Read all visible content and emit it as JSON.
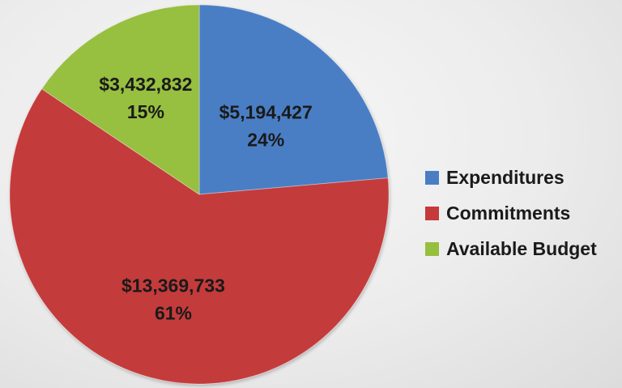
{
  "chart_data": {
    "type": "pie",
    "title": "",
    "slices": [
      {
        "name": "Expenditures",
        "value": 5194427,
        "value_label": "$5,194,427",
        "percent_label": "24%",
        "color": "#4a7ec4"
      },
      {
        "name": "Commitments",
        "value": 13369733,
        "value_label": "$13,369,733",
        "percent_label": "61%",
        "color": "#c43a3a"
      },
      {
        "name": "Available Budget",
        "value": 3432832,
        "value_label": "$3,432,832",
        "percent_label": "15%",
        "color": "#97bf3f"
      }
    ],
    "start_angle_deg": 0,
    "direction": "clockwise",
    "legend_position": "right"
  },
  "legend": {
    "items": [
      {
        "label": "Expenditures",
        "color": "#4a7ec4"
      },
      {
        "label": "Commitments",
        "color": "#c43a3a"
      },
      {
        "label": "Available Budget",
        "color": "#97bf3f"
      }
    ]
  }
}
